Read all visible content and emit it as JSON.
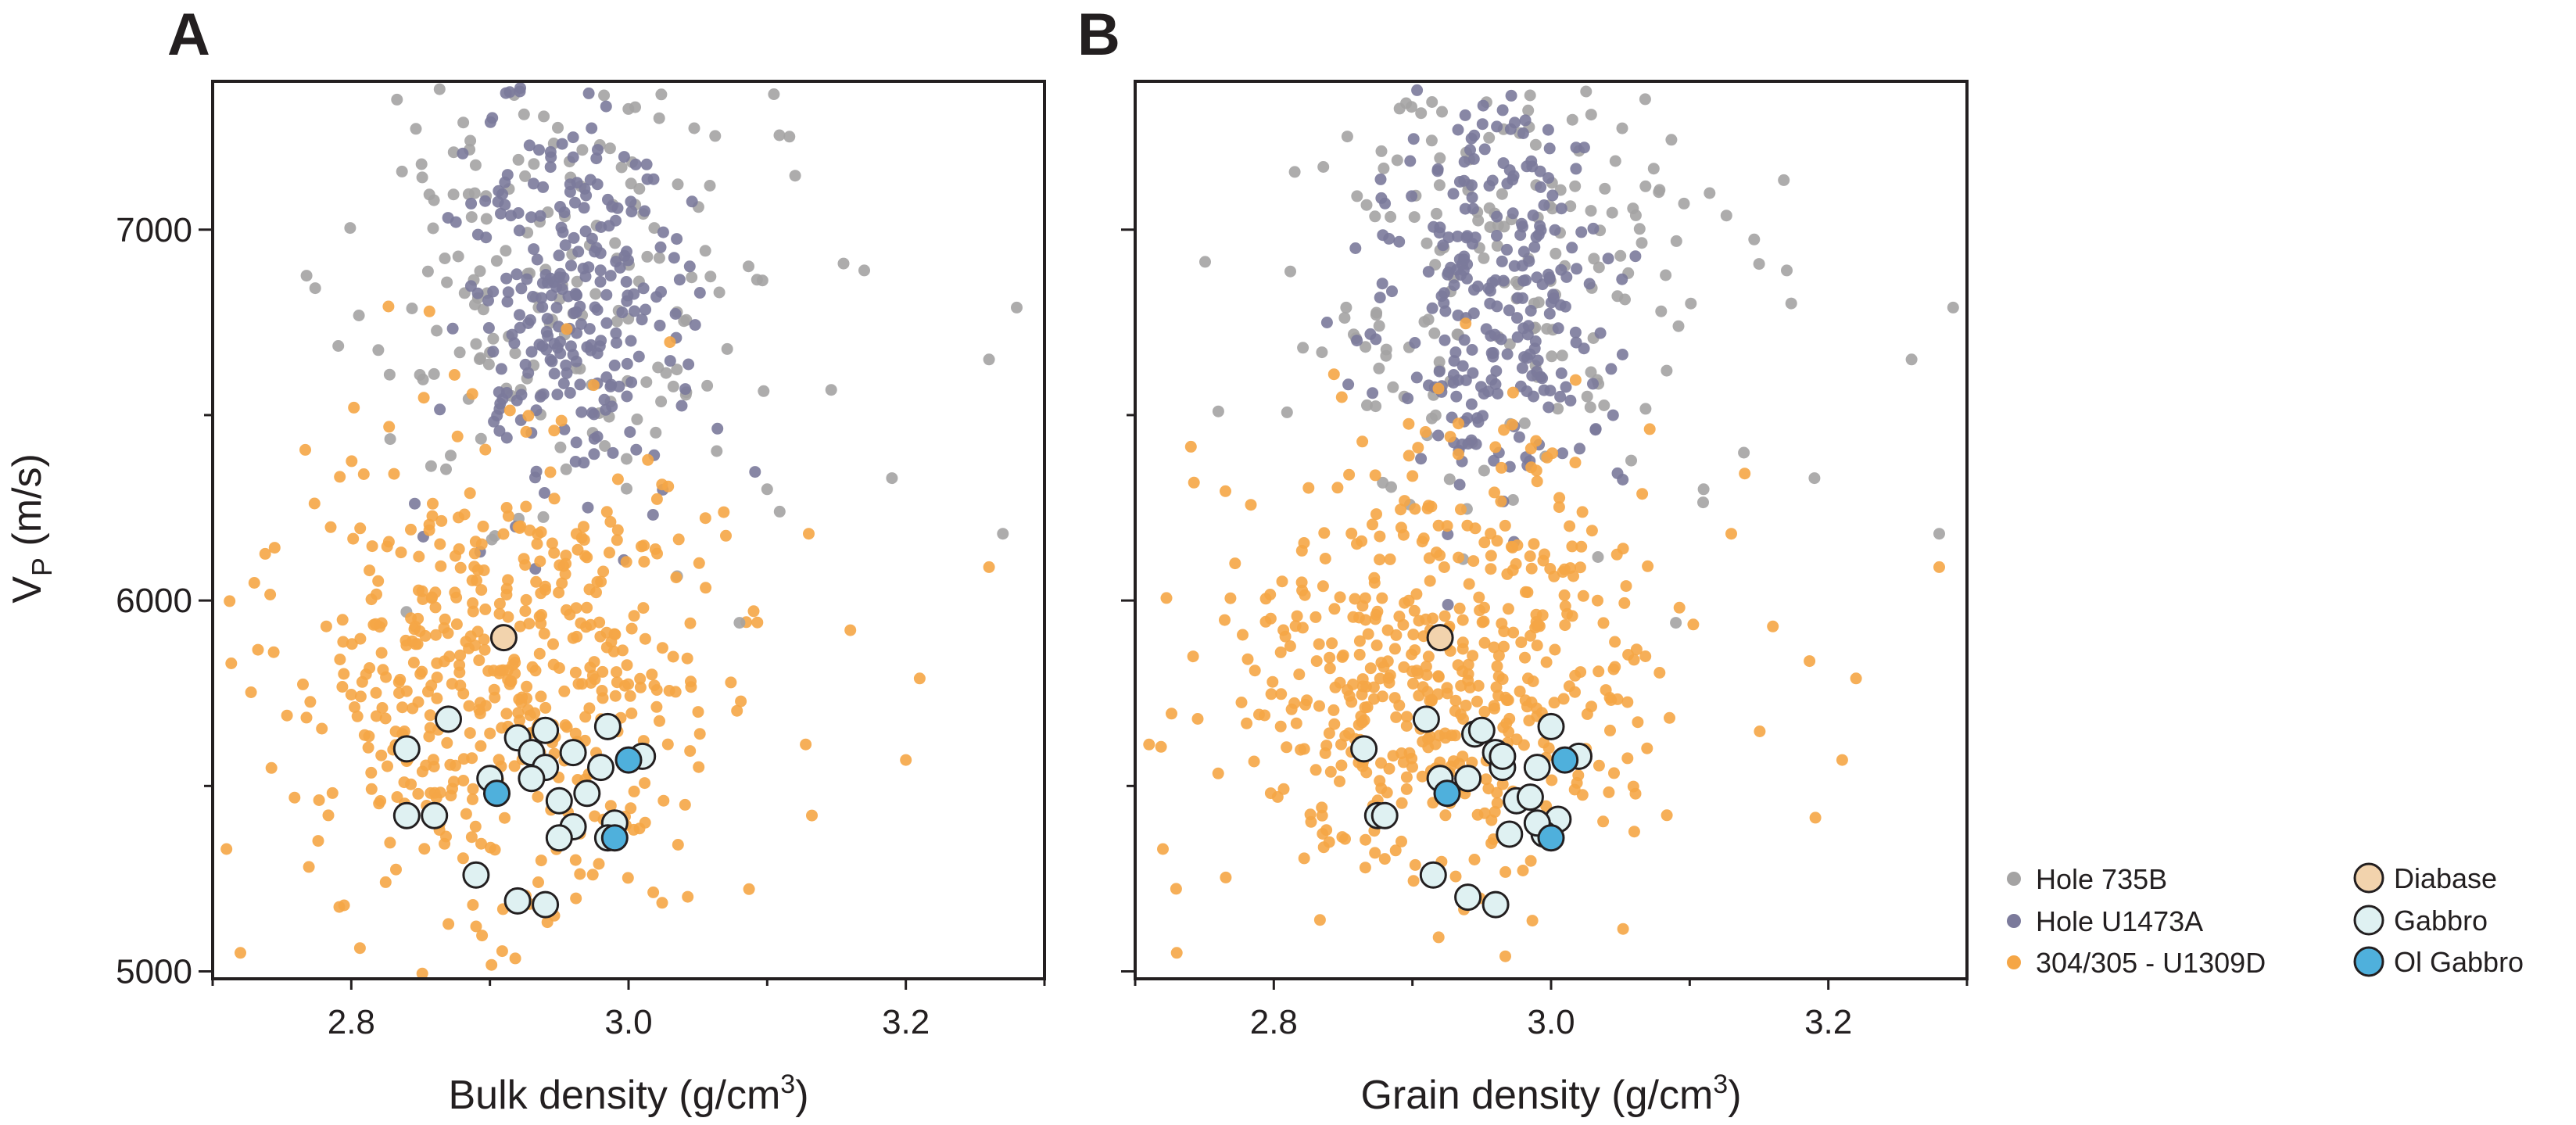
{
  "panels": [
    {
      "letter": "A",
      "xlabel": "Bulk density (g/cm",
      "xlabel_sup": "3",
      "xlabel_end": ")"
    },
    {
      "letter": "B",
      "xlabel": "Grain density (g/cm",
      "xlabel_sup": "3",
      "xlabel_end": ")"
    }
  ],
  "ylabel": {
    "main": "V",
    "sub": "P",
    "rest": " (m/s)"
  },
  "legend": [
    {
      "label": "Hole 735B",
      "kind": "point",
      "color": "#a4a3a3"
    },
    {
      "label": "Hole U1473A",
      "kind": "point",
      "color": "#7b7a9b"
    },
    {
      "label": "304/305 - U1309D",
      "kind": "point",
      "color": "#f5a646"
    },
    {
      "label": "Diabase",
      "kind": "circle",
      "color": "#f2d3ad"
    },
    {
      "label": "Gabbro",
      "kind": "circle",
      "color": "#dff1f2"
    },
    {
      "label": "Ol Gabbro",
      "kind": "circle",
      "color": "#4fb0dc"
    }
  ],
  "chart_data": [
    {
      "type": "scatter",
      "title": "A",
      "xlabel": "Bulk density (g/cm3)",
      "ylabel": "VP (m/s)",
      "xlim": [
        2.7,
        3.3
      ],
      "ylim": [
        4980,
        7400
      ],
      "xticks": [
        2.8,
        3.0,
        3.2
      ],
      "yticks": [
        5000,
        6000,
        7000
      ],
      "grid": false,
      "legend_position": "right",
      "clouds": [
        {
          "name": "Hole 735B",
          "color": "#a4a3a3",
          "center": [
            2.945,
            6880
          ],
          "spread": [
            0.075,
            320
          ],
          "count": 180,
          "seed": 11
        },
        {
          "name": "Hole U1473A",
          "color": "#7b7a9b",
          "center": [
            2.955,
            6800
          ],
          "spread": [
            0.04,
            280
          ],
          "count": 260,
          "seed": 23
        },
        {
          "name": "304/305 - U1309D",
          "color": "#f5a646",
          "center": [
            2.915,
            5800
          ],
          "spread": [
            0.075,
            320
          ],
          "count": 520,
          "seed": 37
        }
      ],
      "scatter_extras": [
        {
          "name": "Hole 735B",
          "color": "#a4a3a3",
          "points": [
            [
              3.17,
              6890
            ],
            [
              3.19,
              6330
            ],
            [
              3.26,
              6650
            ],
            [
              3.27,
              6180
            ],
            [
              3.28,
              6790
            ],
            [
              3.3,
              6820
            ],
            [
              3.08,
              5940
            ],
            [
              3.1,
              6300
            ]
          ]
        },
        {
          "name": "304/305 - U1309D",
          "color": "#f5a646",
          "points": [
            [
              2.7,
              5820
            ],
            [
              2.71,
              5330
            ],
            [
              2.72,
              5050
            ],
            [
              3.2,
              5570
            ],
            [
              3.21,
              5790
            ],
            [
              3.26,
              6090
            ],
            [
              3.3,
              6820
            ],
            [
              3.16,
              5920
            ],
            [
              3.13,
              6180
            ]
          ]
        }
      ],
      "series": [
        {
          "name": "Diabase",
          "color": "#f2d3ad",
          "points": [
            [
              2.91,
              5900
            ]
          ]
        },
        {
          "name": "Gabbro",
          "color": "#dff1f2",
          "points": [
            [
              2.87,
              5680
            ],
            [
              2.84,
              5600
            ],
            [
              2.84,
              5420
            ],
            [
              2.86,
              5420
            ],
            [
              2.89,
              5260
            ],
            [
              2.9,
              5520
            ],
            [
              2.92,
              5630
            ],
            [
              2.93,
              5590
            ],
            [
              2.94,
              5550
            ],
            [
              2.95,
              5460
            ],
            [
              2.96,
              5590
            ],
            [
              2.97,
              5480
            ],
            [
              2.98,
              5550
            ],
            [
              2.985,
              5660
            ],
            [
              2.99,
              5400
            ],
            [
              2.96,
              5390
            ],
            [
              2.95,
              5360
            ],
            [
              2.94,
              5650
            ],
            [
              2.93,
              5520
            ],
            [
              2.92,
              5190
            ],
            [
              2.94,
              5180
            ],
            [
              2.985,
              5360
            ],
            [
              3.01,
              5580
            ]
          ]
        },
        {
          "name": "Ol Gabbro",
          "color": "#4fb0dc",
          "points": [
            [
              2.905,
              5480
            ],
            [
              3.0,
              5570
            ],
            [
              2.99,
              5360
            ]
          ]
        }
      ]
    },
    {
      "type": "scatter",
      "title": "B",
      "xlabel": "Grain density (g/cm3)",
      "ylabel": "VP (m/s)",
      "xlim": [
        2.7,
        3.3
      ],
      "ylim": [
        4980,
        7400
      ],
      "xticks": [
        2.8,
        3.0,
        3.2
      ],
      "yticks": [
        5000,
        6000,
        7000
      ],
      "grid": false,
      "legend_position": "right",
      "clouds": [
        {
          "name": "Hole 735B",
          "color": "#a4a3a3",
          "center": [
            2.955,
            6880
          ],
          "spread": [
            0.075,
            320
          ],
          "count": 180,
          "seed": 51
        },
        {
          "name": "Hole U1473A",
          "color": "#7b7a9b",
          "center": [
            2.965,
            6800
          ],
          "spread": [
            0.04,
            280
          ],
          "count": 260,
          "seed": 63
        },
        {
          "name": "304/305 - U1309D",
          "color": "#f5a646",
          "center": [
            2.925,
            5800
          ],
          "spread": [
            0.075,
            320
          ],
          "count": 520,
          "seed": 77
        }
      ],
      "scatter_extras": [
        {
          "name": "Hole 735B",
          "color": "#a4a3a3",
          "points": [
            [
              3.17,
              6890
            ],
            [
              3.19,
              6330
            ],
            [
              3.26,
              6650
            ],
            [
              3.28,
              6180
            ],
            [
              3.29,
              6790
            ],
            [
              3.3,
              6760
            ],
            [
              3.09,
              5940
            ],
            [
              3.11,
              6300
            ],
            [
              2.76,
              6510
            ]
          ]
        },
        {
          "name": "304/305 - U1309D",
          "color": "#f5a646",
          "points": [
            [
              2.7,
              5110
            ],
            [
              2.72,
              5330
            ],
            [
              2.73,
              5050
            ],
            [
              3.21,
              5570
            ],
            [
              3.22,
              5790
            ],
            [
              3.28,
              6090
            ],
            [
              3.3,
              6830
            ],
            [
              3.16,
              5930
            ],
            [
              3.13,
              6180
            ]
          ]
        }
      ],
      "series": [
        {
          "name": "Diabase",
          "color": "#f2d3ad",
          "points": [
            [
              2.92,
              5900
            ]
          ]
        },
        {
          "name": "Gabbro",
          "color": "#dff1f2",
          "points": [
            [
              2.91,
              5680
            ],
            [
              2.865,
              5600
            ],
            [
              2.875,
              5420
            ],
            [
              2.88,
              5420
            ],
            [
              2.915,
              5260
            ],
            [
              2.92,
              5520
            ],
            [
              2.945,
              5640
            ],
            [
              2.96,
              5590
            ],
            [
              2.965,
              5550
            ],
            [
              2.975,
              5460
            ],
            [
              2.965,
              5580
            ],
            [
              2.985,
              5470
            ],
            [
              2.99,
              5550
            ],
            [
              3.0,
              5660
            ],
            [
              3.005,
              5410
            ],
            [
              2.97,
              5370
            ],
            [
              2.96,
              5180
            ],
            [
              2.95,
              5650
            ],
            [
              2.94,
              5520
            ],
            [
              2.94,
              5200
            ],
            [
              2.995,
              5370
            ],
            [
              3.02,
              5580
            ],
            [
              2.99,
              5400
            ]
          ]
        },
        {
          "name": "Ol Gabbro",
          "color": "#4fb0dc",
          "points": [
            [
              2.925,
              5480
            ],
            [
              3.01,
              5570
            ],
            [
              3.0,
              5360
            ]
          ]
        }
      ]
    }
  ]
}
